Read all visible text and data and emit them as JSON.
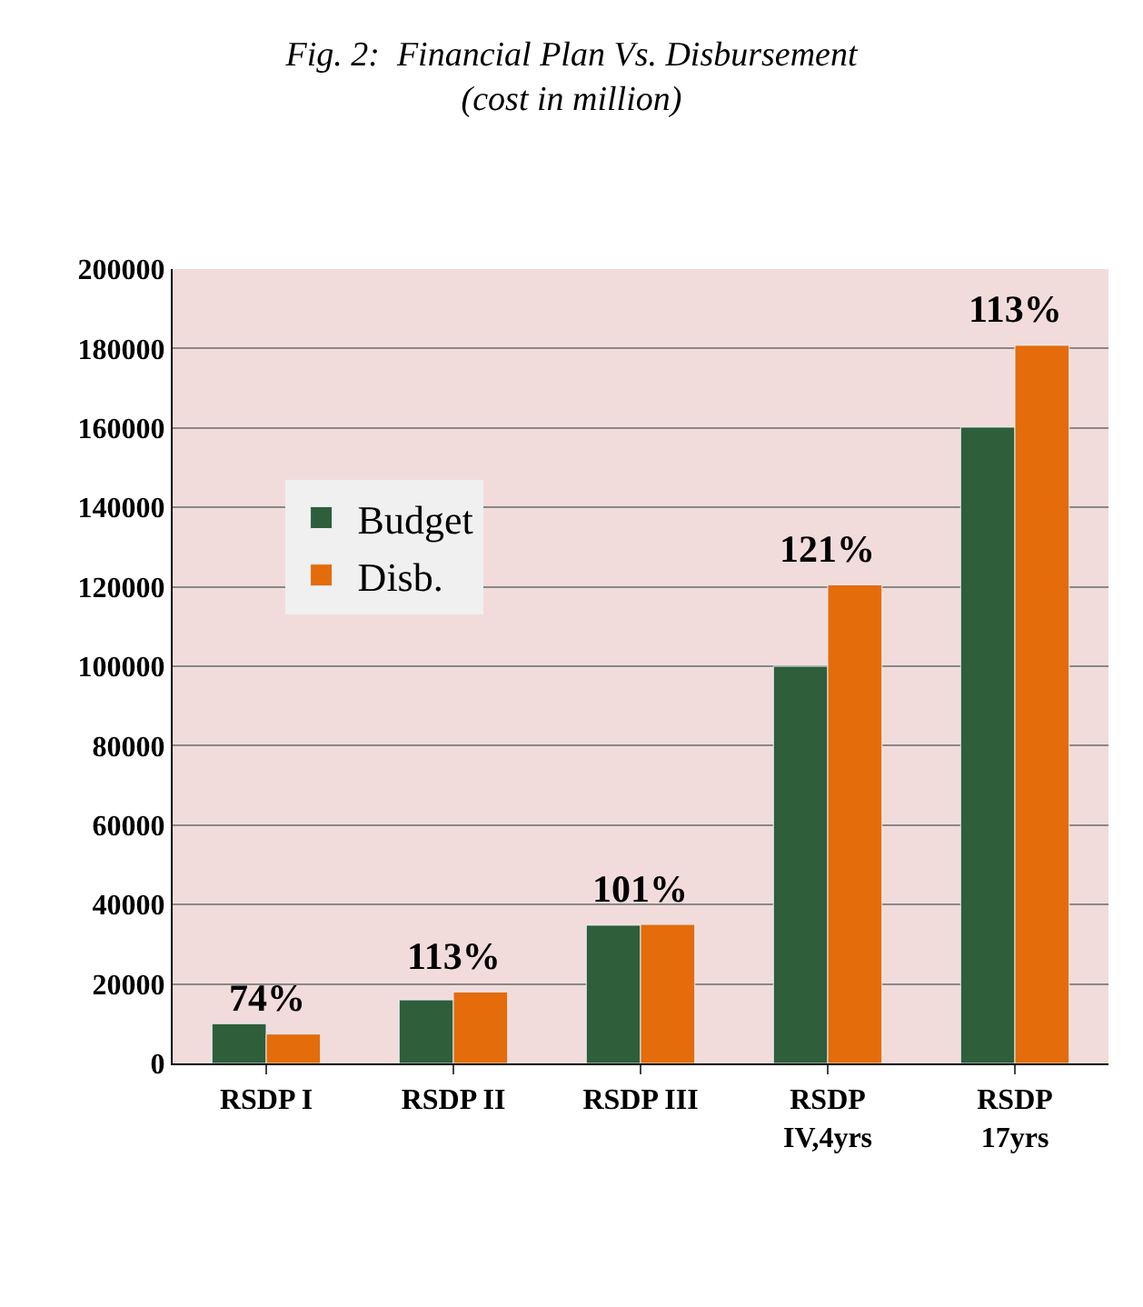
{
  "chart_data": {
    "type": "bar",
    "title": "Fig. 2:  Financial Plan Vs. Disbursement",
    "subtitle": "(cost in million)",
    "categories": [
      "RSDP I",
      "RSDP II",
      "RSDP III",
      "RSDP\nIV,4yrs",
      "RSDP\n17yrs"
    ],
    "series": [
      {
        "name": "Budget",
        "color": "#2e5e3a",
        "values": [
          10000,
          16000,
          34800,
          100000,
          160200
        ]
      },
      {
        "name": "Disb.",
        "color": "#e46c0a",
        "values": [
          7400,
          18000,
          35000,
          120500,
          180800
        ]
      }
    ],
    "annotations": [
      {
        "text": "74%",
        "x": "RSDP I",
        "y": 7400
      },
      {
        "text": "113%",
        "x": "RSDP II",
        "y": 18000
      },
      {
        "text": "101%",
        "x": "RSDP III",
        "y": 35000
      },
      {
        "text": "121%",
        "x": "RSDP\nIV,4yrs",
        "y": 120500
      },
      {
        "text": "113%",
        "x": "RSDP\n17yrs",
        "y": 180800
      }
    ],
    "ylim": [
      0,
      200000
    ],
    "yticks": [
      0,
      20000,
      40000,
      60000,
      80000,
      100000,
      120000,
      140000,
      160000,
      180000,
      200000
    ],
    "grid": "y",
    "legend": "left"
  }
}
